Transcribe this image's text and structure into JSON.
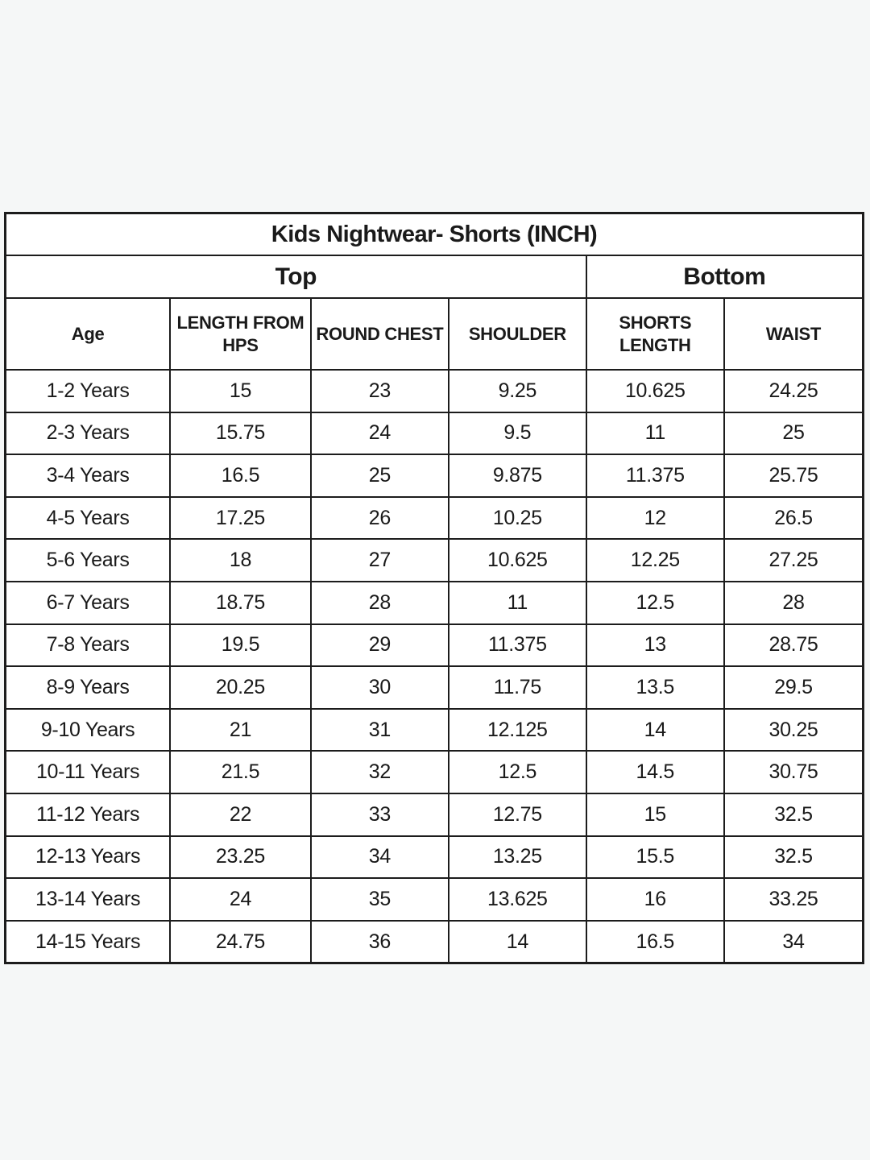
{
  "page": {
    "background_color": "#f5f7f7",
    "cell_background": "#ffffff",
    "border_color": "#1c1c1c",
    "text_color": "#1a1a1a"
  },
  "table": {
    "title": "Kids Nightwear- Shorts (INCH)",
    "groups": [
      {
        "label": "Top",
        "span": 4
      },
      {
        "label": "Bottom",
        "span": 2
      }
    ],
    "columns": [
      "Age",
      "LENGTH FROM HPS",
      "ROUND CHEST",
      "SHOULDER",
      "SHORTS LENGTH",
      "WAIST"
    ],
    "rows": [
      [
        "1-2 Years",
        "15",
        "23",
        "9.25",
        "10.625",
        "24.25"
      ],
      [
        "2-3 Years",
        "15.75",
        "24",
        "9.5",
        "11",
        "25"
      ],
      [
        "3-4 Years",
        "16.5",
        "25",
        "9.875",
        "11.375",
        "25.75"
      ],
      [
        "4-5 Years",
        "17.25",
        "26",
        "10.25",
        "12",
        "26.5"
      ],
      [
        "5-6 Years",
        "18",
        "27",
        "10.625",
        "12.25",
        "27.25"
      ],
      [
        "6-7 Years",
        "18.75",
        "28",
        "11",
        "12.5",
        "28"
      ],
      [
        "7-8 Years",
        "19.5",
        "29",
        "11.375",
        "13",
        "28.75"
      ],
      [
        "8-9 Years",
        "20.25",
        "30",
        "11.75",
        "13.5",
        "29.5"
      ],
      [
        "9-10 Years",
        "21",
        "31",
        "12.125",
        "14",
        "30.25"
      ],
      [
        "10-11 Years",
        "21.5",
        "32",
        "12.5",
        "14.5",
        "30.75"
      ],
      [
        "11-12 Years",
        "22",
        "33",
        "12.75",
        "15",
        "32.5"
      ],
      [
        "12-13 Years",
        "23.25",
        "34",
        "13.25",
        "15.5",
        "32.5"
      ],
      [
        "13-14 Years",
        "24",
        "35",
        "13.625",
        "16",
        "33.25"
      ],
      [
        "14-15 Years",
        "24.75",
        "36",
        "14",
        "16.5",
        "34"
      ]
    ]
  },
  "chart_data": {
    "type": "table",
    "title": "Kids Nightwear- Shorts (INCH)",
    "column_groups": [
      {
        "label": "Top",
        "columns": [
          "Age",
          "LENGTH FROM HPS",
          "ROUND CHEST",
          "SHOULDER"
        ]
      },
      {
        "label": "Bottom",
        "columns": [
          "SHORTS LENGTH",
          "WAIST"
        ]
      }
    ],
    "columns": [
      "Age",
      "LENGTH FROM HPS",
      "ROUND CHEST",
      "SHOULDER",
      "SHORTS LENGTH",
      "WAIST"
    ],
    "unit": "INCH",
    "rows": [
      [
        "1-2 Years",
        15,
        23,
        9.25,
        10.625,
        24.25
      ],
      [
        "2-3 Years",
        15.75,
        24,
        9.5,
        11,
        25
      ],
      [
        "3-4 Years",
        16.5,
        25,
        9.875,
        11.375,
        25.75
      ],
      [
        "4-5 Years",
        17.25,
        26,
        10.25,
        12,
        26.5
      ],
      [
        "5-6 Years",
        18,
        27,
        10.625,
        12.25,
        27.25
      ],
      [
        "6-7 Years",
        18.75,
        28,
        11,
        12.5,
        28
      ],
      [
        "7-8 Years",
        19.5,
        29,
        11.375,
        13,
        28.75
      ],
      [
        "8-9 Years",
        20.25,
        30,
        11.75,
        13.5,
        29.5
      ],
      [
        "9-10 Years",
        21,
        31,
        12.125,
        14,
        30.25
      ],
      [
        "10-11 Years",
        21.5,
        32,
        12.5,
        14.5,
        30.75
      ],
      [
        "11-12 Years",
        22,
        33,
        12.75,
        15,
        32.5
      ],
      [
        "12-13 Years",
        23.25,
        34,
        13.25,
        15.5,
        32.5
      ],
      [
        "13-14 Years",
        24,
        35,
        13.625,
        16,
        33.25
      ],
      [
        "14-15 Years",
        24.75,
        36,
        14,
        16.5,
        34
      ]
    ]
  }
}
